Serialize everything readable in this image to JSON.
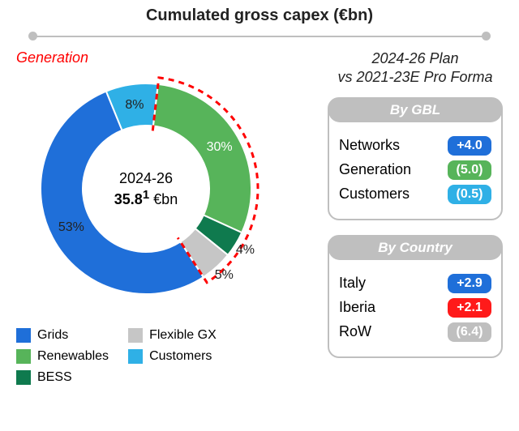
{
  "title": "Cumulated gross capex (€bn)",
  "generation_callout": "Generation",
  "donut": {
    "type": "donut",
    "center_line1": "2024-26",
    "center_value": "35.8",
    "center_superscript": "1",
    "center_unit": " €bn",
    "outer_radius": 130,
    "inner_radius": 78,
    "start_angle_deg": 57,
    "direction": "clockwise",
    "dashed_arc_color": "#ff0000",
    "dashed_arc_width": 3,
    "dashed_arc_pattern": "7 6",
    "background_color": "#ffffff",
    "slices": [
      {
        "name": "Grids",
        "value": 53,
        "color": "#1f6fd9",
        "label": "53%",
        "label_color": "#222222"
      },
      {
        "name": "Customers",
        "value": 8,
        "color": "#2fb0e6",
        "label": "8%",
        "label_color": "#222222"
      },
      {
        "name": "Renewables",
        "value": 30,
        "color": "#57b45a",
        "label": "30%",
        "label_color": "#ffffff"
      },
      {
        "name": "BESS",
        "value": 4,
        "color": "#0f7a4e",
        "label": "4%",
        "label_color": "#222222"
      },
      {
        "name": "Flexible GX",
        "value": 5,
        "color": "#c6c6c6",
        "label": "5%",
        "label_color": "#222222"
      }
    ],
    "generation_group_slices": [
      "Renewables",
      "BESS",
      "Flexible GX"
    ]
  },
  "legend": {
    "col1": [
      {
        "label": "Grids",
        "color": "#1f6fd9"
      },
      {
        "label": "Renewables",
        "color": "#57b45a"
      },
      {
        "label": "BESS",
        "color": "#0f7a4e"
      }
    ],
    "col2": [
      {
        "label": "Flexible GX",
        "color": "#c6c6c6"
      },
      {
        "label": "Customers",
        "color": "#2fb0e6"
      }
    ]
  },
  "compare": {
    "title_line1": "2024-26 Plan",
    "title_line2": "vs 2021-23E Pro Forma",
    "by_gbl": {
      "heading": "By GBL",
      "rows": [
        {
          "label": "Networks",
          "value": "+4.0",
          "pill_bg": "#1f6fd9",
          "pill_fg": "#ffffff"
        },
        {
          "label": "Generation",
          "value": "(5.0)",
          "pill_bg": "#57b45a",
          "pill_fg": "#ffffff"
        },
        {
          "label": "Customers",
          "value": "(0.5)",
          "pill_bg": "#2fb0e6",
          "pill_fg": "#ffffff"
        }
      ]
    },
    "by_country": {
      "heading": "By Country",
      "rows": [
        {
          "label": "Italy",
          "value": "+2.9",
          "pill_bg": "#1f6fd9",
          "pill_fg": "#ffffff"
        },
        {
          "label": "Iberia",
          "value": "+2.1",
          "pill_bg": "#ff1a1a",
          "pill_fg": "#ffffff"
        },
        {
          "label": "RoW",
          "value": "(6.4)",
          "pill_bg": "#bfbfbf",
          "pill_fg": "#ffffff"
        }
      ]
    }
  },
  "colors": {
    "rule": "#bfbfbf",
    "box_border": "#bfbfbf",
    "text": "#222222"
  },
  "fonts": {
    "title_size_pt": 15,
    "body_size_pt": 13
  }
}
